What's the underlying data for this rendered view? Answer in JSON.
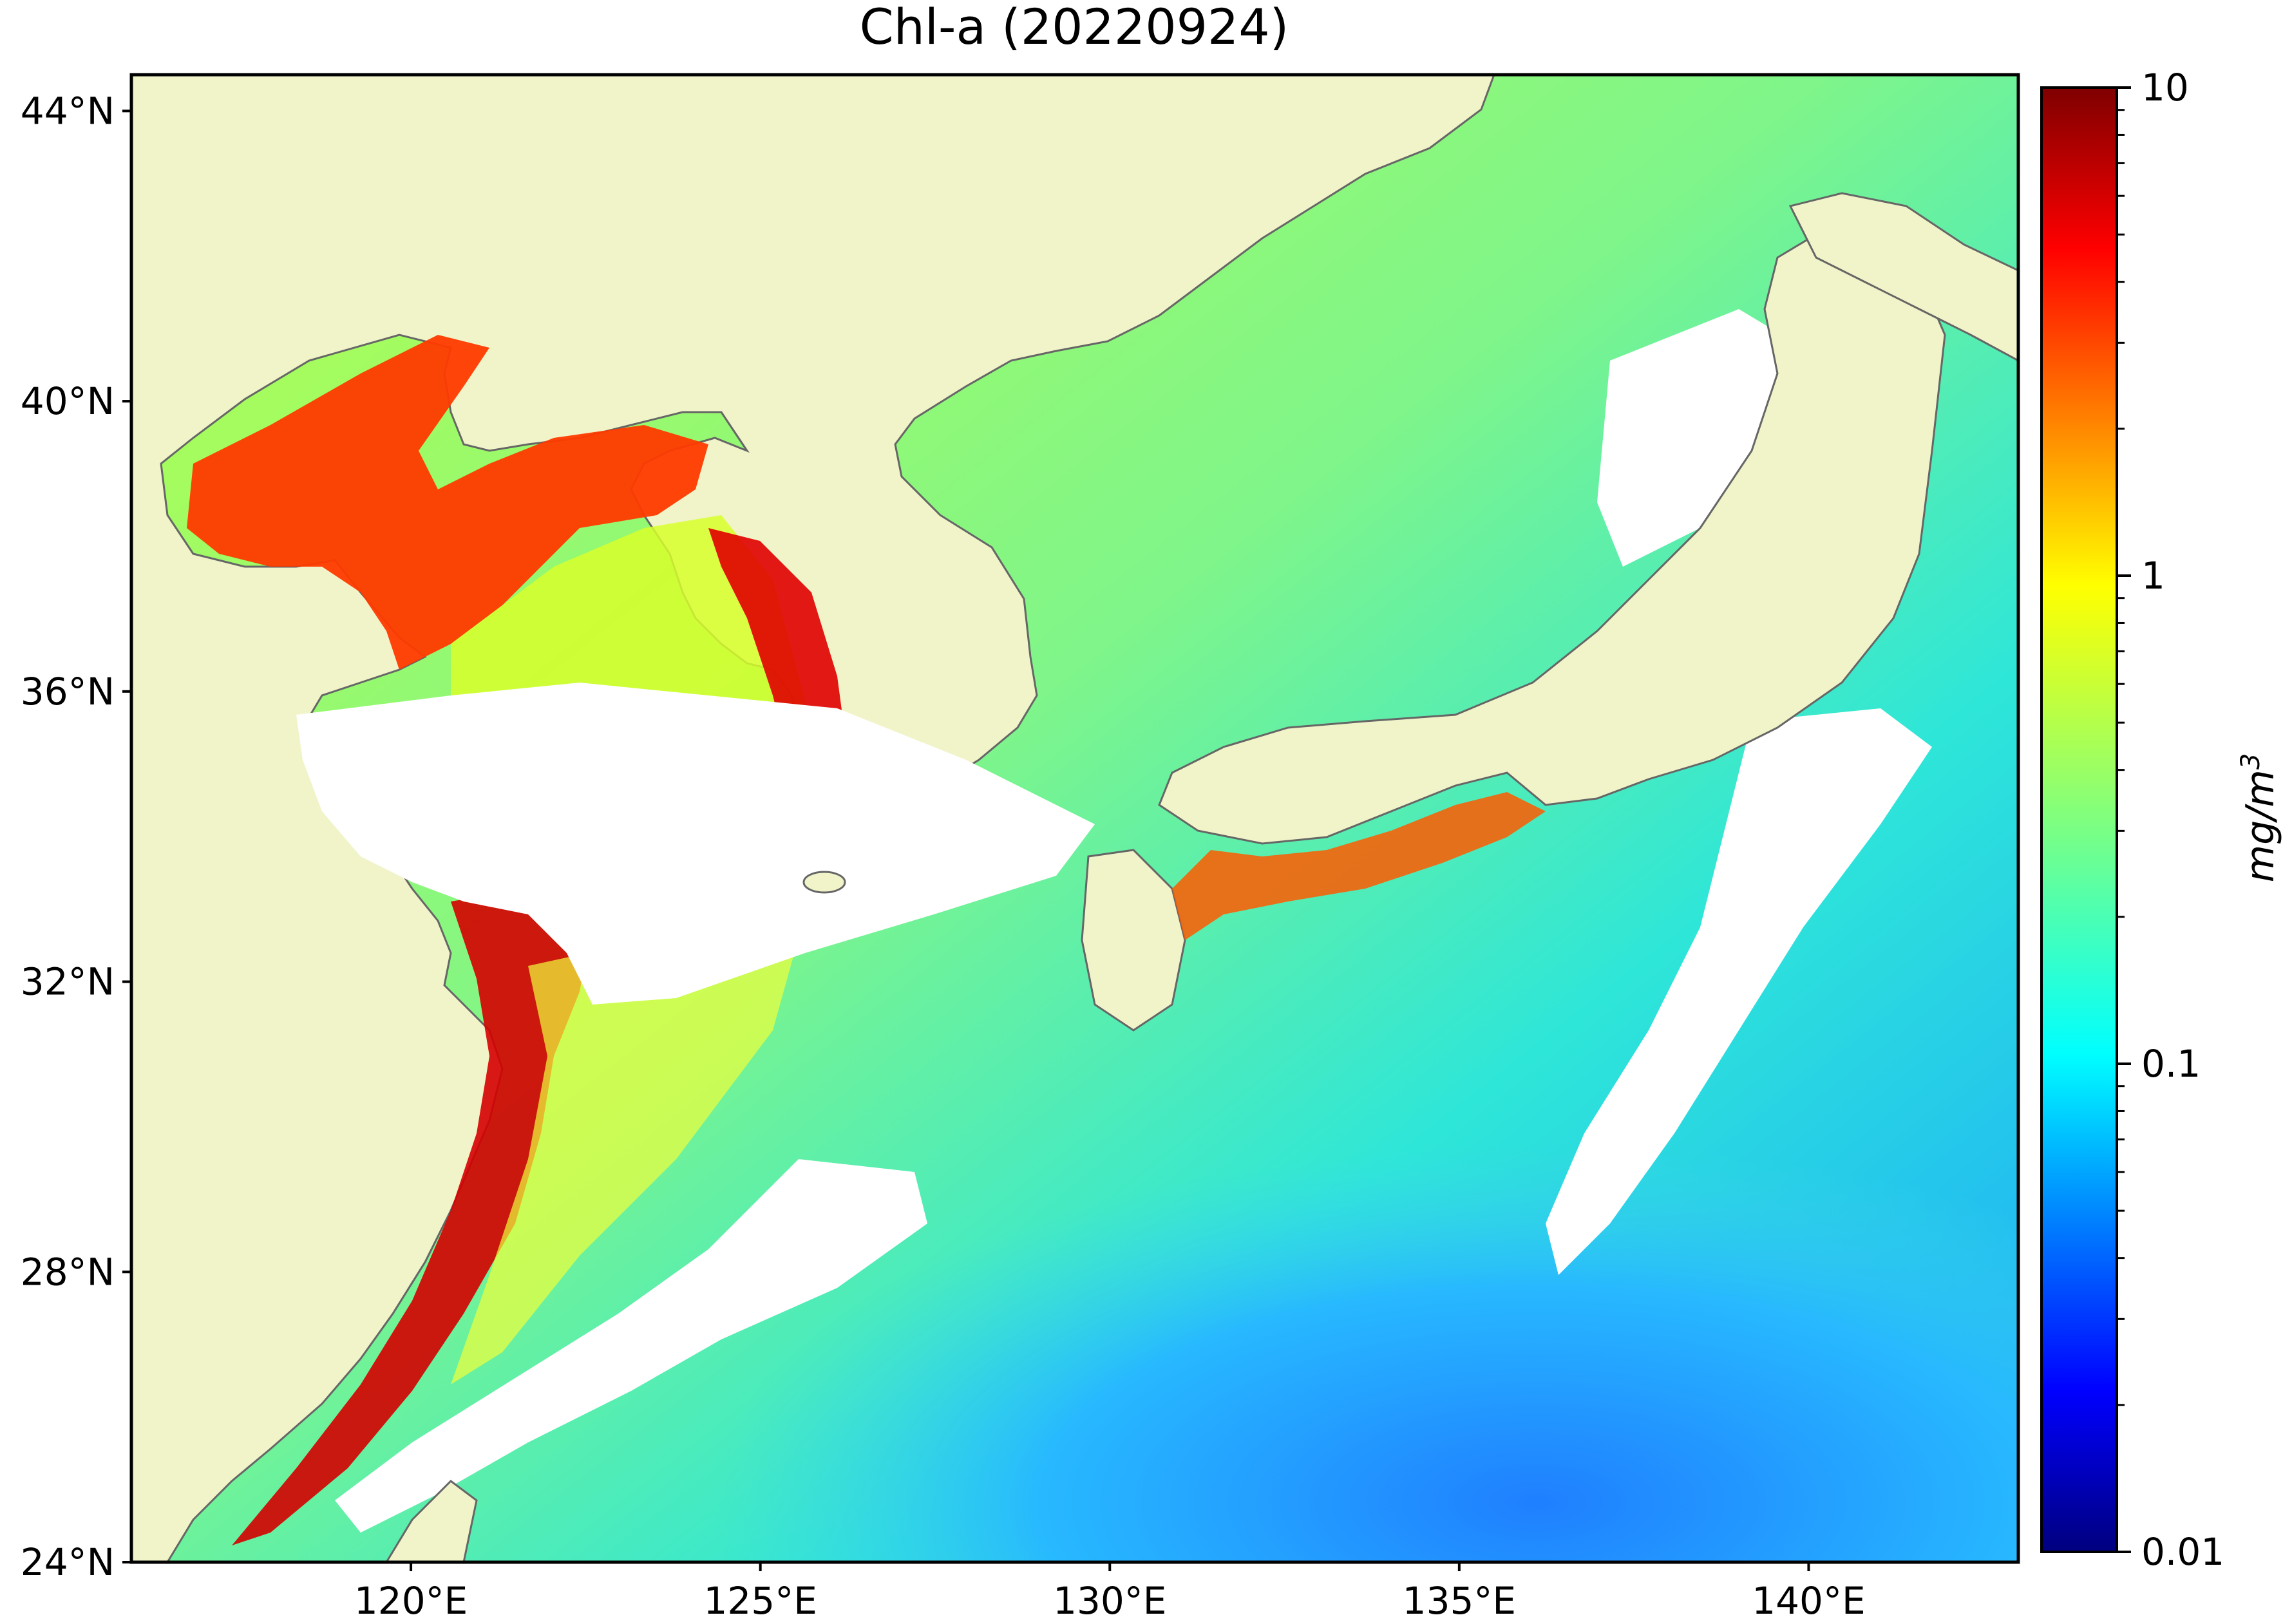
{
  "title": "Chl-a (20220924)",
  "map": {
    "lat_labels": [
      "44°N",
      "40°N",
      "36°N",
      "32°N",
      "28°N",
      "24°N"
    ],
    "lat_values": [
      44,
      40,
      36,
      32,
      28,
      24
    ],
    "lon_labels": [
      "120°E",
      "125°E",
      "130°E",
      "135°E",
      "140°E"
    ],
    "lon_values": [
      120,
      125,
      130,
      135,
      140
    ],
    "lon_range": [
      116.0,
      143.0
    ],
    "lat_range": [
      24.0,
      44.5
    ]
  },
  "colorbar": {
    "label": "mg/m",
    "label_superscript": "3",
    "tick_labels": [
      "10",
      "1",
      "0.1",
      "0.01"
    ],
    "tick_values": [
      10,
      1,
      0.1,
      0.01
    ],
    "scale": "log",
    "range": [
      0.01,
      10
    ],
    "colormap": "jet"
  },
  "colors": {
    "land": "#f1f4c9",
    "coast": "#666666",
    "no_data": "#ffffff",
    "jet": [
      "#00007f",
      "#0000ff",
      "#007fff",
      "#00ffff",
      "#7fff7f",
      "#ffff00",
      "#ff7f00",
      "#ff0000",
      "#7f0000"
    ]
  }
}
